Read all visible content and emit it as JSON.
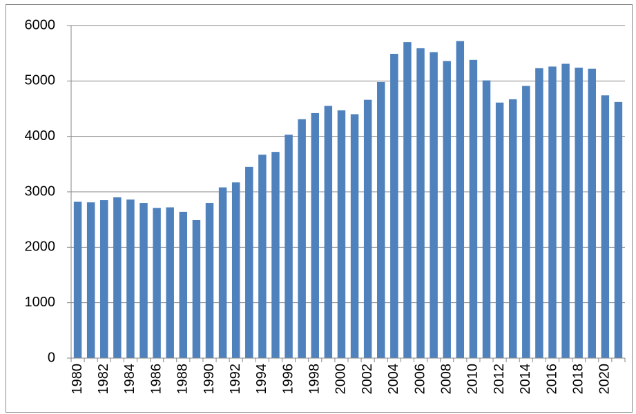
{
  "chart_data": {
    "type": "bar",
    "categories": [
      "1980",
      null,
      "1982",
      null,
      "1984",
      null,
      "1986",
      null,
      "1988",
      null,
      "1990",
      null,
      "1992",
      null,
      "1994",
      null,
      "1996",
      null,
      "1998",
      null,
      "2000",
      null,
      "2002",
      null,
      "2004",
      null,
      "2006",
      null,
      "2008",
      null,
      "2010",
      null,
      "2012",
      null,
      "2014",
      null,
      "2016",
      null,
      "2018",
      null,
      "2020",
      null
    ],
    "values": [
      2820,
      2810,
      2850,
      2900,
      2860,
      2800,
      2710,
      2720,
      2640,
      2490,
      2800,
      3080,
      3170,
      3450,
      3670,
      3720,
      4030,
      4310,
      4420,
      4550,
      4470,
      4400,
      4660,
      4980,
      5490,
      5700,
      5590,
      5520,
      5360,
      5720,
      5380,
      5010,
      4610,
      4670,
      4910,
      5230,
      5260,
      5310,
      5240,
      5220,
      4740,
      4620
    ],
    "color": "#4f81bd",
    "ylim": [
      0,
      6000
    ],
    "yticks": [
      0,
      1000,
      2000,
      3000,
      4000,
      5000,
      6000
    ],
    "grid": true
  }
}
